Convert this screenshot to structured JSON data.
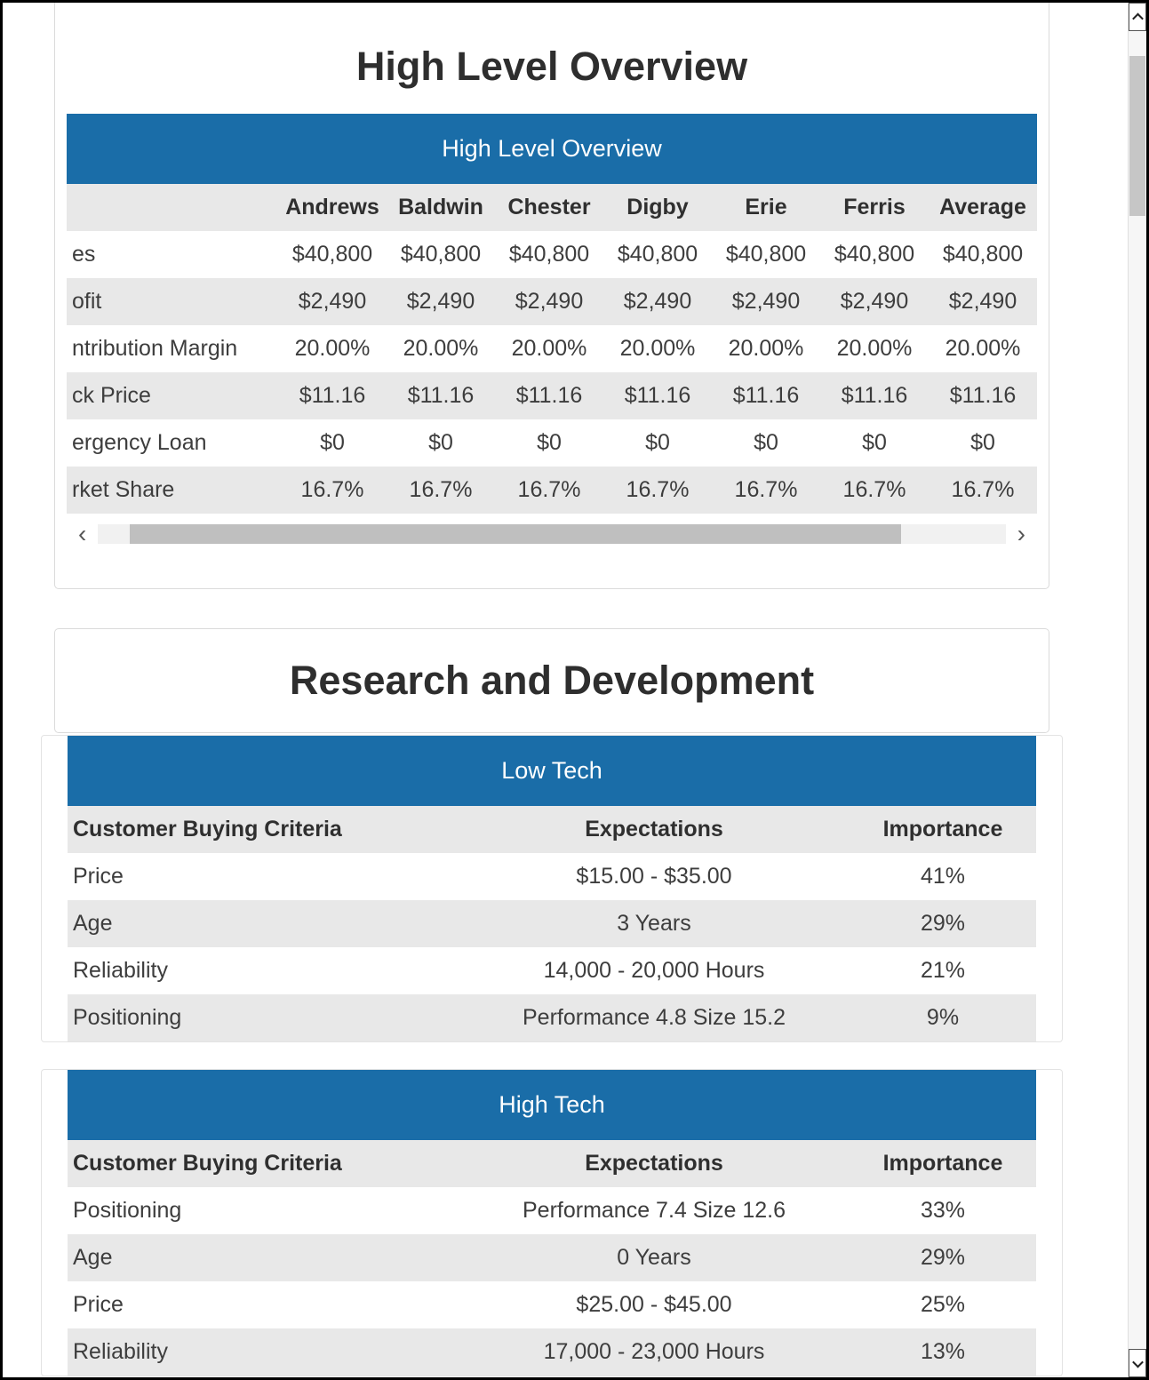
{
  "colors": {
    "accent_blue": "#1a6da8",
    "stripe_gray": "#e8e8e8",
    "header_text_on_blue": "#ffffff"
  },
  "hlo": {
    "title": "High Level Overview",
    "table_header": "High Level Overview",
    "columns": [
      "",
      "Andrews",
      "Baldwin",
      "Chester",
      "Digby",
      "Erie",
      "Ferris",
      "Average"
    ],
    "rows": [
      {
        "label": "es",
        "values": [
          "$40,800",
          "$40,800",
          "$40,800",
          "$40,800",
          "$40,800",
          "$40,800",
          "$40,800"
        ]
      },
      {
        "label": "ofit",
        "values": [
          "$2,490",
          "$2,490",
          "$2,490",
          "$2,490",
          "$2,490",
          "$2,490",
          "$2,490"
        ]
      },
      {
        "label": "ntribution Margin",
        "values": [
          "20.00%",
          "20.00%",
          "20.00%",
          "20.00%",
          "20.00%",
          "20.00%",
          "20.00%"
        ]
      },
      {
        "label": "ck Price",
        "values": [
          "$11.16",
          "$11.16",
          "$11.16",
          "$11.16",
          "$11.16",
          "$11.16",
          "$11.16"
        ]
      },
      {
        "label": "ergency Loan",
        "values": [
          "$0",
          "$0",
          "$0",
          "$0",
          "$0",
          "$0",
          "$0"
        ]
      },
      {
        "label": "rket Share",
        "values": [
          "16.7%",
          "16.7%",
          "16.7%",
          "16.7%",
          "16.7%",
          "16.7%",
          "16.7%"
        ]
      }
    ],
    "scroll_left_glyph": "‹",
    "scroll_right_glyph": "›"
  },
  "rnd": {
    "title": "Research and Development",
    "tables": [
      {
        "header": "Low Tech",
        "columns": [
          "Customer Buying Criteria",
          "Expectations",
          "Importance"
        ],
        "rows": [
          [
            "Price",
            "$15.00 - $35.00",
            "41%"
          ],
          [
            "Age",
            "3 Years",
            "29%"
          ],
          [
            "Reliability",
            "14,000 - 20,000 Hours",
            "21%"
          ],
          [
            "Positioning",
            "Performance 4.8 Size 15.2",
            "9%"
          ]
        ]
      },
      {
        "header": "High Tech",
        "columns": [
          "Customer Buying Criteria",
          "Expectations",
          "Importance"
        ],
        "rows": [
          [
            "Positioning",
            "Performance 7.4 Size 12.6",
            "33%"
          ],
          [
            "Age",
            "0 Years",
            "29%"
          ],
          [
            "Price",
            "$25.00 - $45.00",
            "25%"
          ],
          [
            "Reliability",
            "17,000 - 23,000 Hours",
            "13%"
          ]
        ]
      }
    ]
  }
}
